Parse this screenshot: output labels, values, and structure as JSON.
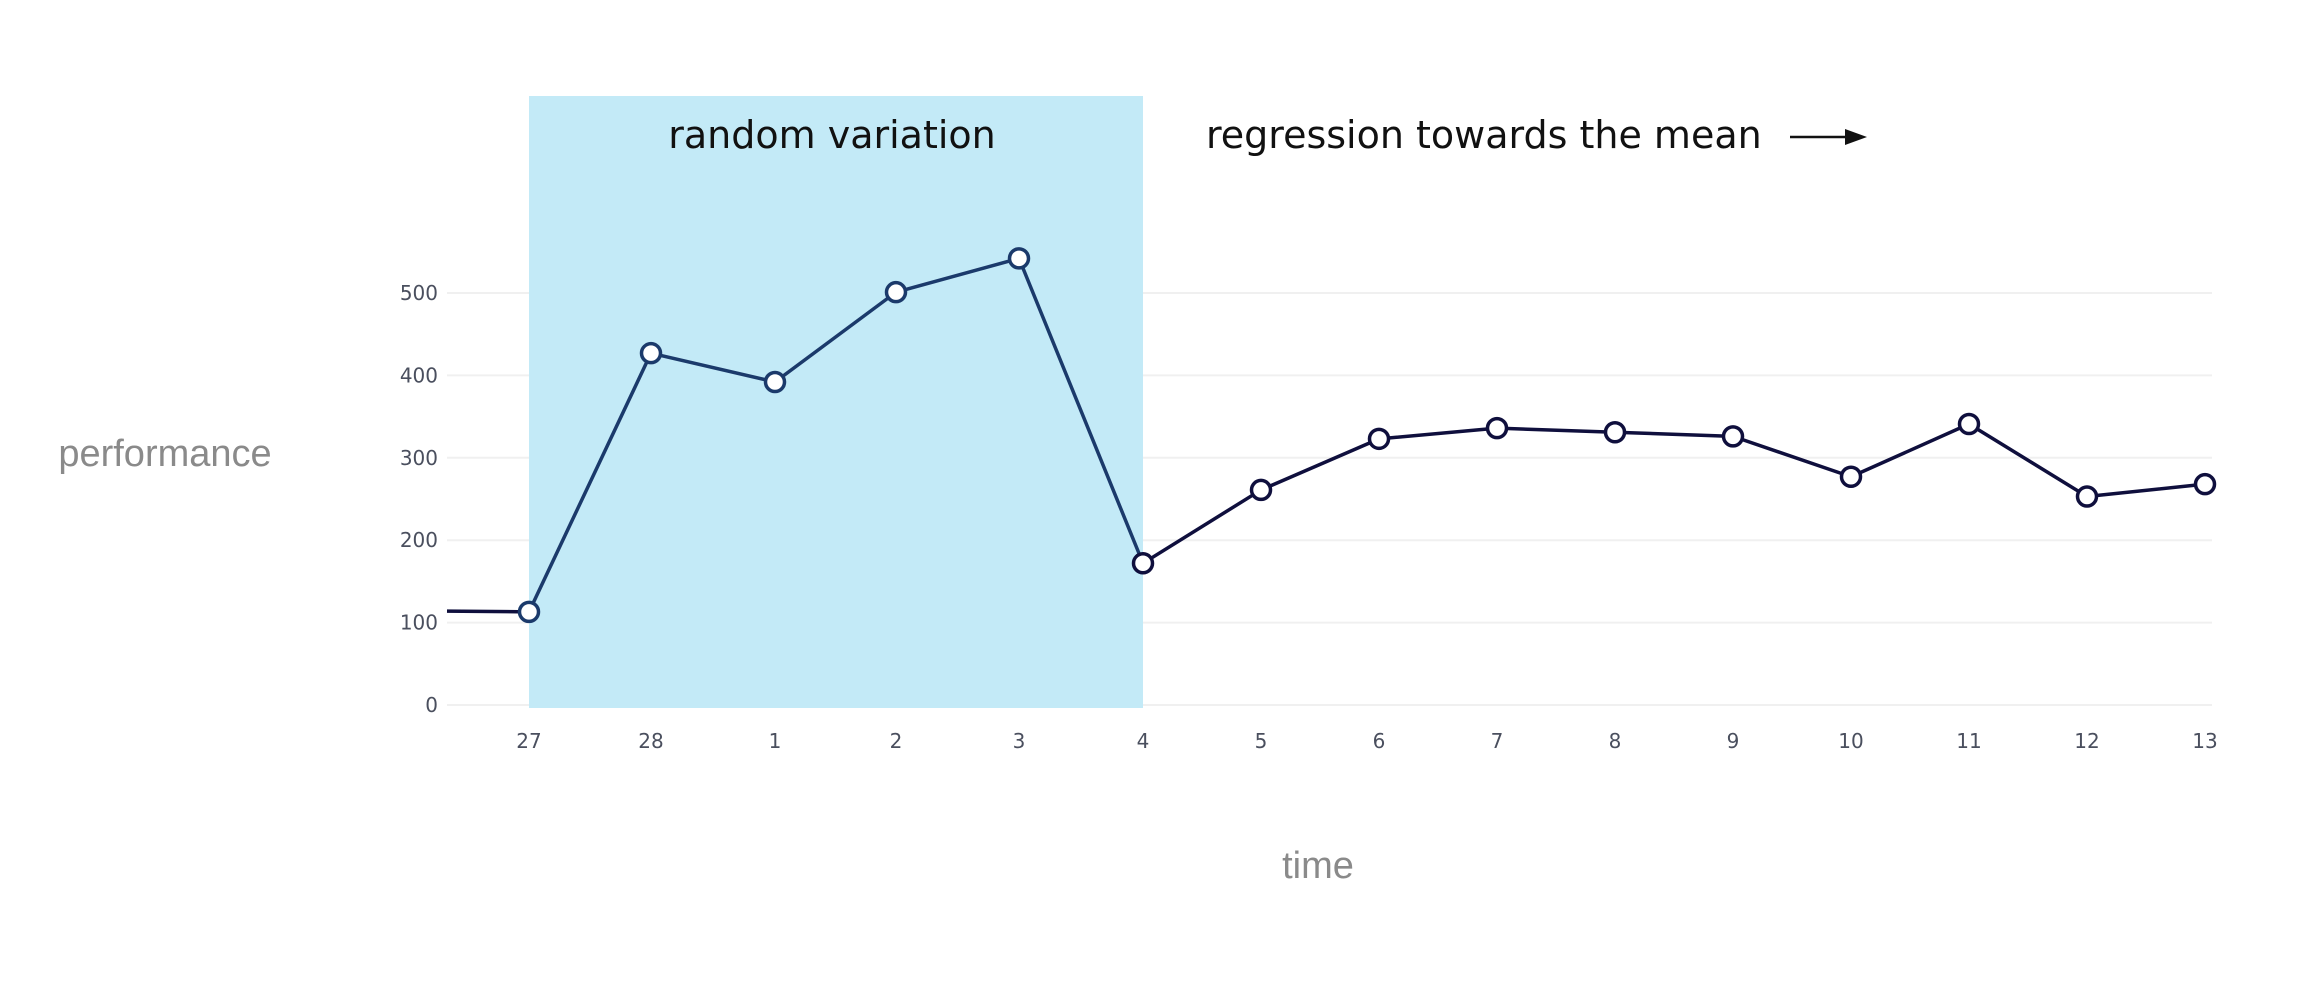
{
  "chart_data": {
    "type": "line",
    "xlabel": "time",
    "ylabel": "performance",
    "ylim": [
      0,
      500
    ],
    "y_ticks": [
      0,
      100,
      200,
      300,
      400,
      500
    ],
    "categories": [
      "27",
      "28",
      "1",
      "2",
      "3",
      "4",
      "5",
      "6",
      "7",
      "8",
      "9",
      "10",
      "11",
      "12",
      "13"
    ],
    "values": [
      113,
      427,
      392,
      501,
      542,
      172,
      261,
      323,
      336,
      331,
      326,
      277,
      341,
      253,
      268
    ],
    "lead_in_value": 114,
    "grid": true,
    "highlight_region": {
      "from_category": "27",
      "to_category": "4",
      "label": "random variation",
      "color": "#c3eaf7"
    },
    "annotations": [
      {
        "text": "regression towards the mean",
        "arrow": "right"
      }
    ],
    "colors": {
      "highlighted_line": "#1b3a6b",
      "line": "#0f0f3d",
      "marker_fill": "#ffffff",
      "grid": "#f0f0f0"
    }
  }
}
